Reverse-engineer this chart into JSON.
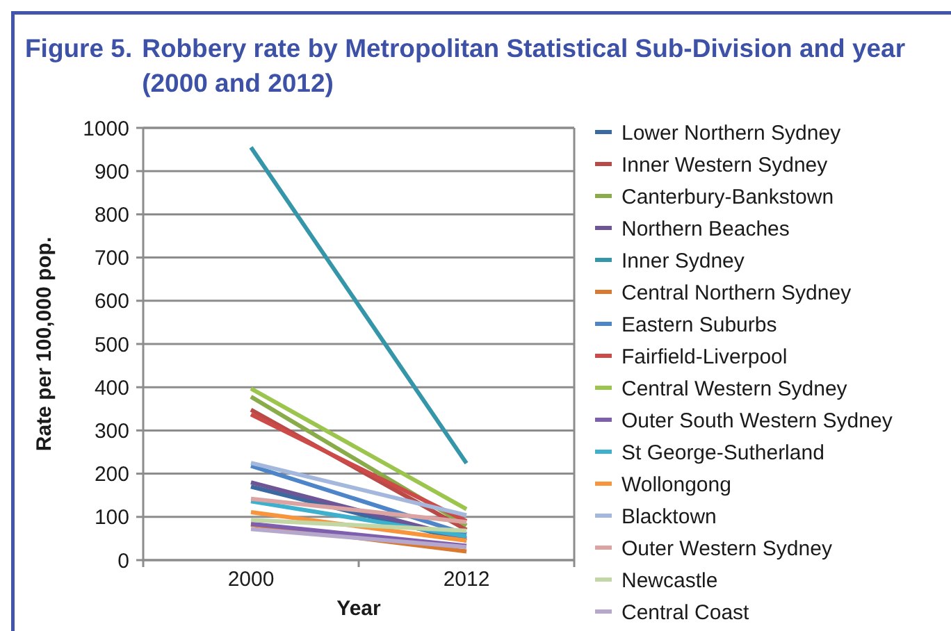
{
  "chart_data": {
    "type": "line",
    "title": "Figure 5.  Robbery rate by Metropolitan Statistical Sub-Division and year (2000 and 2012)",
    "xlabel": "Year",
    "ylabel": "Rate per 100,000 pop.",
    "categories": [
      "2000",
      "2012"
    ],
    "ylim": [
      0,
      1000
    ],
    "yticks": [
      0,
      100,
      200,
      300,
      400,
      500,
      600,
      700,
      800,
      900,
      1000
    ],
    "grid": "y",
    "legend": "right",
    "series": [
      {
        "name": "Lower Northern Sydney",
        "color": "#3b6aa0",
        "values": [
          170,
          45
        ]
      },
      {
        "name": "Inner Western Sydney",
        "color": "#b94a48",
        "values": [
          348,
          70
        ]
      },
      {
        "name": "Canterbury-Bankstown",
        "color": "#8aab4a",
        "values": [
          378,
          80
        ]
      },
      {
        "name": "Northern Beaches",
        "color": "#6e5696",
        "values": [
          180,
          50
        ]
      },
      {
        "name": "Inner Sydney",
        "color": "#3596a9",
        "values": [
          955,
          224
        ]
      },
      {
        "name": "Central Northern Sydney",
        "color": "#d9782f",
        "values": [
          82,
          20
        ]
      },
      {
        "name": "Eastern Suburbs",
        "color": "#4d85c8",
        "values": [
          218,
          60
        ]
      },
      {
        "name": "Fairfield-Liverpool",
        "color": "#cc4b48",
        "values": [
          337,
          90
        ]
      },
      {
        "name": "Central Western Sydney",
        "color": "#9cc54e",
        "values": [
          397,
          118
        ]
      },
      {
        "name": "Outer South Western Sydney",
        "color": "#7d5fae",
        "values": [
          84,
          33
        ]
      },
      {
        "name": "St George-Sutherland",
        "color": "#3cb0cc",
        "values": [
          136,
          55
        ]
      },
      {
        "name": "Wollongong",
        "color": "#f7943c",
        "values": [
          111,
          45
        ]
      },
      {
        "name": "Blacktown",
        "color": "#a3b8dc",
        "values": [
          225,
          104
        ]
      },
      {
        "name": "Outer Western Sydney",
        "color": "#dba3a2",
        "values": [
          142,
          88
        ]
      },
      {
        "name": "Newcastle",
        "color": "#c3d6a5",
        "values": [
          93,
          68
        ]
      },
      {
        "name": "Central Coast",
        "color": "#b6a8cd",
        "values": [
          72,
          30
        ]
      }
    ]
  }
}
